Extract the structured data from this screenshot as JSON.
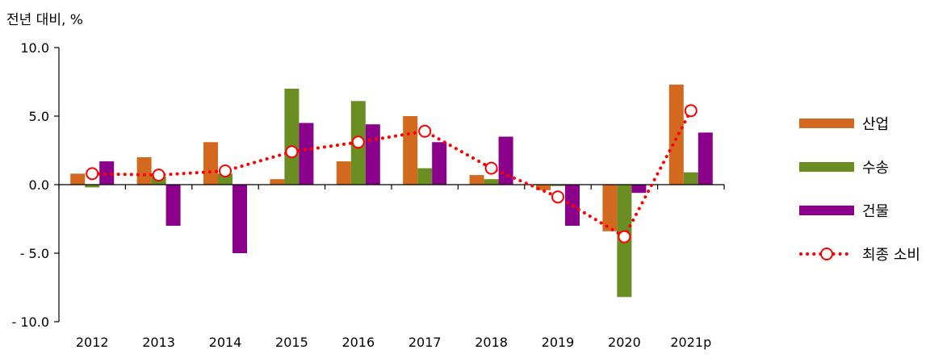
{
  "chart_data": {
    "type": "bar",
    "ylabel": "전년 대비, %",
    "ylim": [
      -10,
      10
    ],
    "yticks": [
      10,
      5,
      0,
      -5,
      -10
    ],
    "ytick_labels": [
      "10.0",
      "5.0",
      "0.0",
      "- 5.0",
      "- 10.0"
    ],
    "categories": [
      "2012",
      "2013",
      "2014",
      "2015",
      "2016",
      "2017",
      "2018",
      "2019",
      "2020",
      "2021p"
    ],
    "series": [
      {
        "name": "산업",
        "kind": "bar",
        "color": "#D2691E",
        "values": [
          0.8,
          2.0,
          3.1,
          0.4,
          1.7,
          5.0,
          0.7,
          -0.4,
          -3.4,
          7.3
        ]
      },
      {
        "name": "수송",
        "kind": "bar",
        "color": "#6B8E23",
        "values": [
          -0.2,
          0.6,
          0.8,
          7.0,
          6.1,
          1.2,
          0.4,
          -0.1,
          -8.2,
          0.9
        ]
      },
      {
        "name": "건물",
        "kind": "bar",
        "color": "#8B008B",
        "values": [
          1.7,
          -3.0,
          -5.0,
          4.5,
          4.4,
          3.1,
          3.5,
          -3.0,
          -0.6,
          3.8
        ]
      },
      {
        "name": "최종 소비",
        "kind": "line",
        "color": "#FF0000",
        "values": [
          0.8,
          0.7,
          1.0,
          2.4,
          3.1,
          3.9,
          1.2,
          -0.9,
          -3.8,
          5.4
        ]
      }
    ],
    "legend_position": "right",
    "grid": false
  }
}
